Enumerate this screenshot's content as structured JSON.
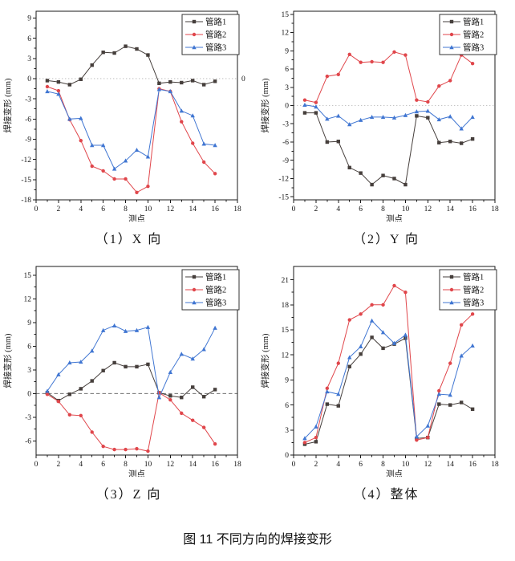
{
  "figure": {
    "caption": "图 11 不同方向的焊接变形"
  },
  "chart_data": [
    {
      "type": "line",
      "title": "（1）X 向",
      "xlabel": "测点",
      "ylabel": "焊接变形 (mm)",
      "xlim": [
        0,
        18
      ],
      "ylim": [
        -18,
        10
      ],
      "xticks": [
        0,
        2,
        4,
        6,
        8,
        10,
        12,
        14,
        16,
        18
      ],
      "yticks": [
        -18,
        -15,
        -12,
        -9,
        -6,
        -3,
        0,
        3,
        6,
        9
      ],
      "grid": false,
      "legend_position": "top-right",
      "zero_line": "dotted",
      "zero_right_label": "0",
      "x": [
        1,
        2,
        3,
        4,
        5,
        6,
        7,
        8,
        9,
        10,
        11,
        12,
        13,
        14,
        15,
        16
      ],
      "series": [
        {
          "name": "管路1",
          "color": "#463f3c",
          "marker": "square",
          "values": [
            -0.3,
            -0.5,
            -0.9,
            -0.1,
            2.0,
            3.9,
            3.8,
            4.8,
            4.4,
            3.5,
            -0.7,
            -0.5,
            -0.6,
            -0.3,
            -0.9,
            -0.4
          ]
        },
        {
          "name": "管路2",
          "color": "#e0464b",
          "marker": "circle",
          "values": [
            -1.2,
            -1.8,
            -6.1,
            -9.2,
            -13.0,
            -13.7,
            -14.9,
            -14.9,
            -16.9,
            -16.0,
            -1.5,
            -1.9,
            -6.4,
            -9.6,
            -12.4,
            -14.1
          ]
        },
        {
          "name": "管路3",
          "color": "#4076d2",
          "marker": "triangle",
          "values": [
            -1.9,
            -2.3,
            -6.0,
            -5.9,
            -9.9,
            -9.9,
            -13.4,
            -12.2,
            -10.6,
            -11.6,
            -1.6,
            -1.9,
            -4.8,
            -5.5,
            -9.7,
            -9.9
          ]
        }
      ]
    },
    {
      "type": "line",
      "title": "（2）Y 向",
      "xlabel": "测点",
      "ylabel": "焊接变形 (mm)",
      "xlim": [
        0,
        18
      ],
      "ylim": [
        -15.5,
        15.5
      ],
      "xticks": [
        0,
        2,
        4,
        6,
        8,
        10,
        12,
        14,
        16,
        18
      ],
      "yticks": [
        -15,
        -12,
        -9,
        -6,
        -3,
        0,
        3,
        6,
        9,
        12,
        15
      ],
      "grid": false,
      "legend_position": "top-right",
      "zero_line": "dotted",
      "x": [
        1,
        2,
        3,
        4,
        5,
        6,
        7,
        8,
        9,
        10,
        11,
        12,
        13,
        14,
        15,
        16
      ],
      "series": [
        {
          "name": "管路1",
          "color": "#463f3c",
          "marker": "square",
          "values": [
            -1.2,
            -1.2,
            -6.0,
            -5.9,
            -10.2,
            -11.1,
            -13.0,
            -11.5,
            -12.0,
            -13.0,
            -1.7,
            -2.0,
            -6.1,
            -5.9,
            -6.2,
            -5.5
          ]
        },
        {
          "name": "管路2",
          "color": "#e0464b",
          "marker": "circle",
          "values": [
            0.9,
            0.5,
            4.8,
            5.1,
            8.4,
            7.1,
            7.2,
            7.1,
            8.8,
            8.3,
            0.9,
            0.6,
            3.2,
            4.1,
            8.3,
            6.9
          ]
        },
        {
          "name": "管路3",
          "color": "#4076d2",
          "marker": "triangle",
          "values": [
            0.1,
            -0.2,
            -2.2,
            -1.7,
            -3.1,
            -2.4,
            -1.9,
            -1.9,
            -2.0,
            -1.6,
            -1.0,
            -0.9,
            -2.3,
            -1.8,
            -3.8,
            -1.9
          ]
        }
      ]
    },
    {
      "type": "line",
      "title": "（3）Z 向",
      "xlabel": "测点",
      "ylabel": "焊接变形 (mm)",
      "xlim": [
        0,
        18
      ],
      "ylim": [
        -7.8,
        16.1
      ],
      "xticks": [
        0,
        2,
        4,
        6,
        8,
        10,
        12,
        14,
        16,
        18
      ],
      "yticks": [
        -6,
        -3,
        0,
        3,
        6,
        9,
        12,
        15
      ],
      "grid": false,
      "legend_position": "top-right",
      "zero_line": "dashed",
      "x": [
        1,
        2,
        3,
        4,
        5,
        6,
        7,
        8,
        9,
        10,
        11,
        12,
        13,
        14,
        15,
        16
      ],
      "series": [
        {
          "name": "管路1",
          "color": "#463f3c",
          "marker": "square",
          "values": [
            0.1,
            -0.9,
            -0.1,
            0.6,
            1.6,
            2.9,
            3.9,
            3.4,
            3.4,
            3.7,
            0.1,
            -0.3,
            -0.5,
            0.8,
            -0.4,
            0.5
          ]
        },
        {
          "name": "管路2",
          "color": "#e0464b",
          "marker": "circle",
          "values": [
            -0.1,
            -1.0,
            -2.7,
            -2.8,
            -4.9,
            -6.7,
            -7.1,
            -7.1,
            -7.0,
            -7.3,
            0.1,
            -0.8,
            -2.5,
            -3.4,
            -4.3,
            -6.4
          ]
        },
        {
          "name": "管路3",
          "color": "#4076d2",
          "marker": "triangle",
          "values": [
            0.3,
            2.4,
            3.9,
            4.0,
            5.4,
            8.0,
            8.6,
            7.9,
            8.0,
            8.4,
            -0.5,
            2.7,
            5.0,
            4.4,
            5.6,
            8.3
          ]
        }
      ]
    },
    {
      "type": "line",
      "title": "（4）整体",
      "xlabel": "测点",
      "ylabel": "焊接变形 (mm)",
      "xlim": [
        0,
        18
      ],
      "ylim": [
        0,
        22.6
      ],
      "xticks": [
        0,
        2,
        4,
        6,
        8,
        10,
        12,
        14,
        16,
        18
      ],
      "yticks": [
        0,
        3,
        6,
        9,
        12,
        15,
        18,
        21
      ],
      "grid": false,
      "legend_position": "top-right",
      "zero_line": null,
      "x": [
        1,
        2,
        3,
        4,
        5,
        6,
        7,
        8,
        9,
        10,
        11,
        12,
        13,
        14,
        15,
        16
      ],
      "series": [
        {
          "name": "管路1",
          "color": "#463f3c",
          "marker": "square",
          "values": [
            1.3,
            1.6,
            6.1,
            5.9,
            10.6,
            12.1,
            14.1,
            12.8,
            13.3,
            14.0,
            2.0,
            2.1,
            6.1,
            6.0,
            6.3,
            5.5
          ]
        },
        {
          "name": "管路2",
          "color": "#e0464b",
          "marker": "circle",
          "values": [
            1.5,
            2.1,
            8.0,
            11.0,
            16.2,
            16.9,
            18.0,
            18.0,
            20.3,
            19.5,
            1.8,
            2.1,
            7.7,
            11.0,
            15.6,
            16.9
          ]
        },
        {
          "name": "管路3",
          "color": "#4076d2",
          "marker": "triangle",
          "values": [
            2.0,
            3.4,
            7.6,
            7.3,
            11.7,
            13.0,
            16.1,
            14.7,
            13.4,
            14.4,
            2.2,
            3.5,
            7.3,
            7.2,
            11.9,
            13.1
          ]
        }
      ]
    }
  ]
}
